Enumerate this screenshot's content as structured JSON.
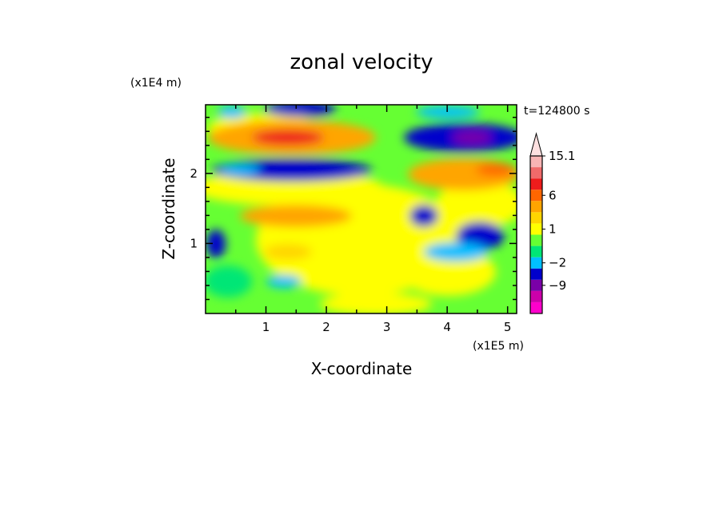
{
  "chart_data": {
    "type": "heatmap",
    "title": "zonal velocity",
    "xlabel": "X-coordinate",
    "ylabel": "Z-coordinate",
    "x_scale_label": "(x1E5 m)",
    "y_scale_label": "(x1E4 m)",
    "time_label": "t=124800 s",
    "xlim": [
      0,
      5.15
    ],
    "ylim": [
      0,
      2.98
    ],
    "x_ticks": [
      1,
      2,
      3,
      4,
      5
    ],
    "y_ticks": [
      1,
      2
    ],
    "x_tick_labels": [
      "1",
      "2",
      "3",
      "4",
      "5"
    ],
    "y_tick_labels": [
      "1",
      "2"
    ],
    "colorbar": {
      "levels": [
        -15,
        -12,
        -9,
        -6,
        -2,
        -1,
        0,
        1,
        2,
        4,
        6,
        9,
        12,
        15.1
      ],
      "tick_labels": [
        "15.1",
        "6",
        "1",
        "−2",
        "−9"
      ],
      "tick_values": [
        15.1,
        6,
        1,
        -2,
        -9
      ],
      "colors": [
        "#ff00cc",
        "#cc00aa",
        "#7a00a8",
        "#0000cc",
        "#00bfff",
        "#00e676",
        "#66ff33",
        "#ffff00",
        "#ffd500",
        "#ffa500",
        "#ff6600",
        "#ee1c1c",
        "#f06a6a",
        "#f8b4b4"
      ],
      "extends_max": true
    },
    "features": [
      {
        "x": 1.4,
        "z": 2.5,
        "value": 9,
        "note": "upper orange/red jet"
      },
      {
        "x": 1.5,
        "z": 2.05,
        "value": -6,
        "note": "blue band under jet"
      },
      {
        "x": 4.2,
        "z": 2.5,
        "value": -9,
        "note": "blue/purple band at right"
      },
      {
        "x": 4.4,
        "z": 2.1,
        "value": 5,
        "note": "orange band at right"
      },
      {
        "x": 4.0,
        "z": 1.4,
        "value": -5,
        "note": "blue patch"
      },
      {
        "x": 1.0,
        "z": 1.4,
        "value": 3,
        "note": "orange patch"
      },
      {
        "x": 1.3,
        "z": 2.95,
        "value": -7,
        "note": "blue at top"
      }
    ]
  }
}
